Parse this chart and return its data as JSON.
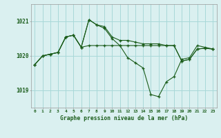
{
  "title": "Graphe pression niveau de la mer (hPa)",
  "yticks": [
    1019,
    1020,
    1021
  ],
  "ylim": [
    1018.5,
    1021.5
  ],
  "xlim": [
    -0.5,
    23.5
  ],
  "bg_color": "#daf0f0",
  "grid_color": "#a8d8d8",
  "line_color": "#1a5c1a",
  "lines": [
    [
      1019.75,
      1020.0,
      1020.05,
      1020.1,
      1020.55,
      1020.6,
      1020.25,
      1021.05,
      1020.9,
      1020.85,
      1020.55,
      1020.45,
      1020.45,
      1020.4,
      1020.35,
      1020.35,
      1020.35,
      1020.3,
      1020.3,
      1019.85,
      1019.9,
      1020.2,
      1020.22,
      1020.2
    ],
    [
      1019.75,
      1020.0,
      1020.05,
      1020.1,
      1020.55,
      1020.6,
      1020.25,
      1021.05,
      1020.9,
      1020.8,
      1020.5,
      1020.3,
      1019.95,
      1019.8,
      1019.65,
      1018.88,
      1018.82,
      1019.25,
      1019.4,
      1019.9,
      1019.95,
      1020.3,
      1020.25,
      1020.2
    ],
    [
      1019.75,
      1020.0,
      1020.05,
      1020.1,
      1020.55,
      1020.6,
      1020.25,
      1020.3,
      1020.3,
      1020.3,
      1020.3,
      1020.3,
      1020.3,
      1020.3,
      1020.3,
      1020.3,
      1020.3,
      1020.3,
      1020.3,
      1019.85,
      1019.9,
      1020.2,
      1020.22,
      1020.2
    ]
  ]
}
